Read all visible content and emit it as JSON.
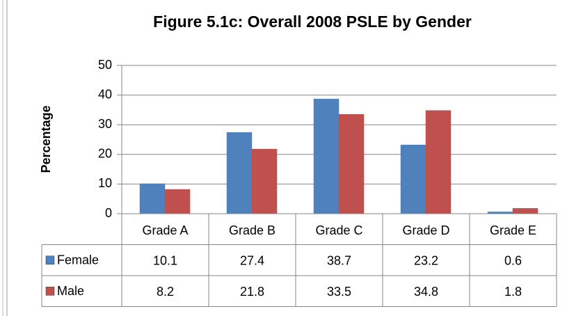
{
  "chart_data": {
    "type": "bar",
    "title": "Figure 5.1c: Overall 2008 PSLE by Gender",
    "y_label": "Percentage",
    "categories": [
      "Grade A",
      "Grade B",
      "Grade C",
      "Grade D",
      "Grade E"
    ],
    "series": [
      {
        "name": "Female",
        "color": "#4f81bd",
        "values": [
          10.1,
          27.4,
          38.7,
          23.2,
          0.6
        ]
      },
      {
        "name": "Male",
        "color": "#c0504d",
        "values": [
          8.2,
          21.8,
          33.5,
          34.8,
          1.8
        ]
      }
    ],
    "ylim": [
      0,
      50
    ],
    "yticks": [
      0,
      10,
      20,
      30,
      40,
      50
    ],
    "grid": true
  }
}
